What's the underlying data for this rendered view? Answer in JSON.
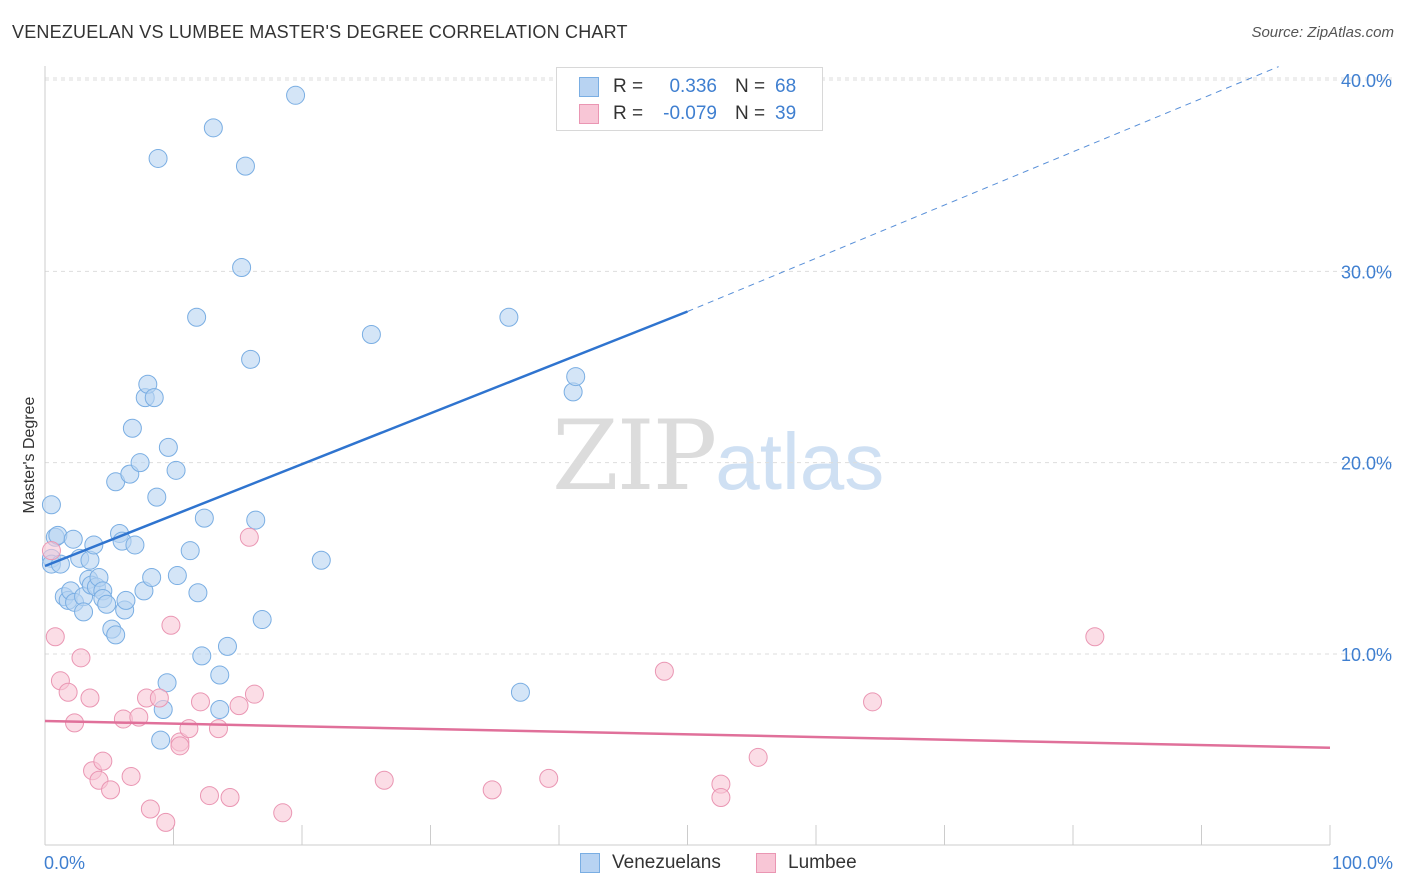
{
  "title": "VENEZUELAN VS LUMBEE MASTER'S DEGREE CORRELATION CHART",
  "source": "Source: ZipAtlas.com",
  "watermark": {
    "zip": "ZIP",
    "atlas": "atlas"
  },
  "colors": {
    "venezuelan_fill": "#b8d3f2",
    "venezuelan_stroke": "#7aaee3",
    "venezuelan_line": "#2f74cf",
    "lumbee_fill": "#f8c6d6",
    "lumbee_stroke": "#ea96b3",
    "lumbee_line": "#e0709a",
    "tick": "#3f7fd0"
  },
  "legend": {
    "rows": [
      {
        "r_label": "R =",
        "r_value": "0.336",
        "n_label": "N =",
        "n_value": "68"
      },
      {
        "r_label": "R =",
        "r_value": "-0.079",
        "n_label": "N =",
        "n_value": "39"
      }
    ]
  },
  "bottom_legend": [
    "Venezuelans",
    "Lumbee"
  ],
  "chart_data": {
    "type": "scatter",
    "title": "VENEZUELAN VS LUMBEE MASTER'S DEGREE CORRELATION CHART",
    "xlabel": "",
    "ylabel": "Master's Degree",
    "xlim": [
      0,
      100
    ],
    "ylim": [
      0,
      41
    ],
    "x_tick_labels": [
      "0.0%",
      "100.0%"
    ],
    "y_ticks": [
      10,
      20,
      30,
      40
    ],
    "y_tick_labels": [
      "10.0%",
      "20.0%",
      "30.0%",
      "40.0%"
    ],
    "grid": true,
    "series": [
      {
        "name": "Venezuelans",
        "r": 0.336,
        "n": 68,
        "trend": {
          "x0": 0,
          "y0": 14.6,
          "x1": 50,
          "y1": 27.9,
          "dash_to_x": 96,
          "dash_to_y": 40.7
        },
        "points": [
          [
            0.5,
            17.8
          ],
          [
            0.5,
            15.0
          ],
          [
            0.5,
            14.7
          ],
          [
            0.8,
            16.1
          ],
          [
            1.0,
            16.2
          ],
          [
            1.2,
            14.7
          ],
          [
            1.5,
            13.0
          ],
          [
            1.8,
            12.8
          ],
          [
            2.0,
            13.3
          ],
          [
            2.2,
            16.0
          ],
          [
            2.3,
            12.7
          ],
          [
            2.7,
            15.0
          ],
          [
            3.0,
            13.0
          ],
          [
            3.0,
            12.2
          ],
          [
            3.4,
            13.9
          ],
          [
            3.6,
            13.6
          ],
          [
            3.5,
            14.9
          ],
          [
            3.8,
            15.7
          ],
          [
            4.0,
            13.5
          ],
          [
            4.2,
            14.0
          ],
          [
            4.5,
            13.3
          ],
          [
            4.5,
            12.9
          ],
          [
            4.8,
            12.6
          ],
          [
            5.2,
            11.3
          ],
          [
            5.5,
            11.0
          ],
          [
            5.5,
            19.0
          ],
          [
            5.8,
            16.3
          ],
          [
            6.0,
            15.9
          ],
          [
            6.2,
            12.3
          ],
          [
            6.3,
            12.8
          ],
          [
            6.6,
            19.4
          ],
          [
            6.8,
            21.8
          ],
          [
            7.0,
            15.7
          ],
          [
            7.4,
            20.0
          ],
          [
            7.7,
            13.3
          ],
          [
            7.8,
            23.4
          ],
          [
            8.0,
            24.1
          ],
          [
            8.3,
            14.0
          ],
          [
            8.5,
            23.4
          ],
          [
            8.7,
            18.2
          ],
          [
            8.8,
            35.9
          ],
          [
            9.0,
            5.5
          ],
          [
            9.2,
            7.1
          ],
          [
            9.6,
            20.8
          ],
          [
            10.2,
            19.6
          ],
          [
            10.3,
            14.1
          ],
          [
            11.3,
            15.4
          ],
          [
            11.8,
            27.6
          ],
          [
            11.9,
            13.2
          ],
          [
            12.2,
            9.9
          ],
          [
            12.4,
            17.1
          ],
          [
            13.1,
            37.5
          ],
          [
            13.6,
            8.9
          ],
          [
            13.6,
            7.1
          ],
          [
            14.2,
            10.4
          ],
          [
            15.3,
            30.2
          ],
          [
            15.6,
            35.5
          ],
          [
            16.0,
            25.4
          ],
          [
            16.4,
            17.0
          ],
          [
            16.9,
            11.8
          ],
          [
            19.5,
            39.2
          ],
          [
            21.5,
            14.9
          ],
          [
            25.4,
            26.7
          ],
          [
            36.1,
            27.6
          ],
          [
            37.0,
            8.0
          ],
          [
            41.1,
            23.7
          ],
          [
            41.3,
            24.5
          ],
          [
            9.5,
            8.5
          ]
        ]
      },
      {
        "name": "Lumbee",
        "r": -0.079,
        "n": 39,
        "trend": {
          "x0": 0,
          "y0": 6.5,
          "x1": 100,
          "y1": 5.1
        },
        "points": [
          [
            0.5,
            15.4
          ],
          [
            0.8,
            10.9
          ],
          [
            1.2,
            8.6
          ],
          [
            1.8,
            8.0
          ],
          [
            2.3,
            6.4
          ],
          [
            2.8,
            9.8
          ],
          [
            3.5,
            7.7
          ],
          [
            3.7,
            3.9
          ],
          [
            4.2,
            3.4
          ],
          [
            4.5,
            4.4
          ],
          [
            5.1,
            2.9
          ],
          [
            6.1,
            6.6
          ],
          [
            6.7,
            3.6
          ],
          [
            7.3,
            6.7
          ],
          [
            7.9,
            7.7
          ],
          [
            8.2,
            1.9
          ],
          [
            8.9,
            7.7
          ],
          [
            9.4,
            1.2
          ],
          [
            9.8,
            11.5
          ],
          [
            10.5,
            5.4
          ],
          [
            10.5,
            5.2
          ],
          [
            11.2,
            6.1
          ],
          [
            12.1,
            7.5
          ],
          [
            12.8,
            2.6
          ],
          [
            13.5,
            6.1
          ],
          [
            14.4,
            2.5
          ],
          [
            15.1,
            7.3
          ],
          [
            15.9,
            16.1
          ],
          [
            16.3,
            7.9
          ],
          [
            18.5,
            1.7
          ],
          [
            26.4,
            3.4
          ],
          [
            34.8,
            2.9
          ],
          [
            39.2,
            3.5
          ],
          [
            48.2,
            9.1
          ],
          [
            52.6,
            3.2
          ],
          [
            52.6,
            2.5
          ],
          [
            55.5,
            4.6
          ],
          [
            64.4,
            7.5
          ],
          [
            81.7,
            10.9
          ]
        ]
      }
    ]
  }
}
